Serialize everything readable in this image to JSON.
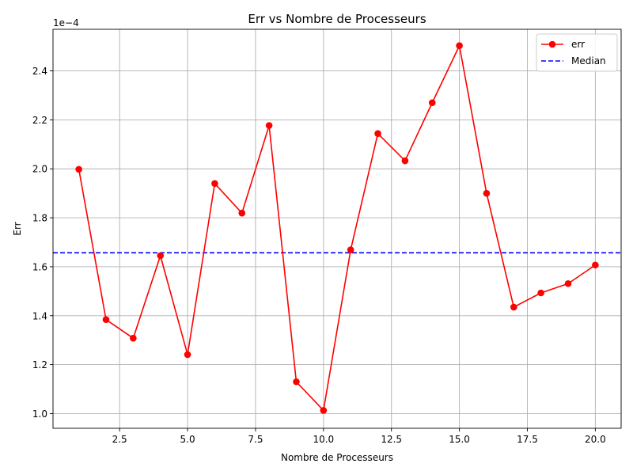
{
  "chart_data": {
    "type": "line",
    "title": "Err vs Nombre de Processeurs",
    "xlabel": "Nombre de Processeurs",
    "ylabel": "Err",
    "y_scale_label": "1e−4",
    "x_ticks": [
      2.5,
      5.0,
      7.5,
      10.0,
      12.5,
      15.0,
      17.5,
      20.0
    ],
    "x_tick_labels": [
      "2.5",
      "5.0",
      "7.5",
      "10.0",
      "12.5",
      "15.0",
      "17.5",
      "20.0"
    ],
    "y_ticks": [
      1.0,
      1.2,
      1.4,
      1.6,
      1.8,
      2.0,
      2.2,
      2.4
    ],
    "y_tick_labels": [
      "1.0",
      "1.2",
      "1.4",
      "1.6",
      "1.8",
      "2.0",
      "2.2",
      "2.4"
    ],
    "xlim": [
      0.05,
      20.95
    ],
    "ylim": [
      0.94,
      2.57
    ],
    "grid": true,
    "legend_position": "top-right",
    "x": [
      1,
      2,
      3,
      4,
      5,
      6,
      7,
      8,
      9,
      10,
      11,
      12,
      13,
      14,
      15,
      16,
      17,
      18,
      19,
      20
    ],
    "series": [
      {
        "name": "err",
        "color": "#ff0000",
        "style": "solid-line-with-circle-markers",
        "values": [
          1.998,
          1.384,
          1.308,
          1.645,
          1.241,
          1.94,
          1.819,
          2.177,
          1.13,
          1.013,
          1.669,
          2.144,
          2.033,
          2.27,
          2.503,
          1.9,
          1.435,
          1.493,
          1.531,
          1.607
        ]
      },
      {
        "name": "Median",
        "color": "#0000ff",
        "style": "dashed-horizontal-line",
        "value": 1.657
      }
    ]
  }
}
